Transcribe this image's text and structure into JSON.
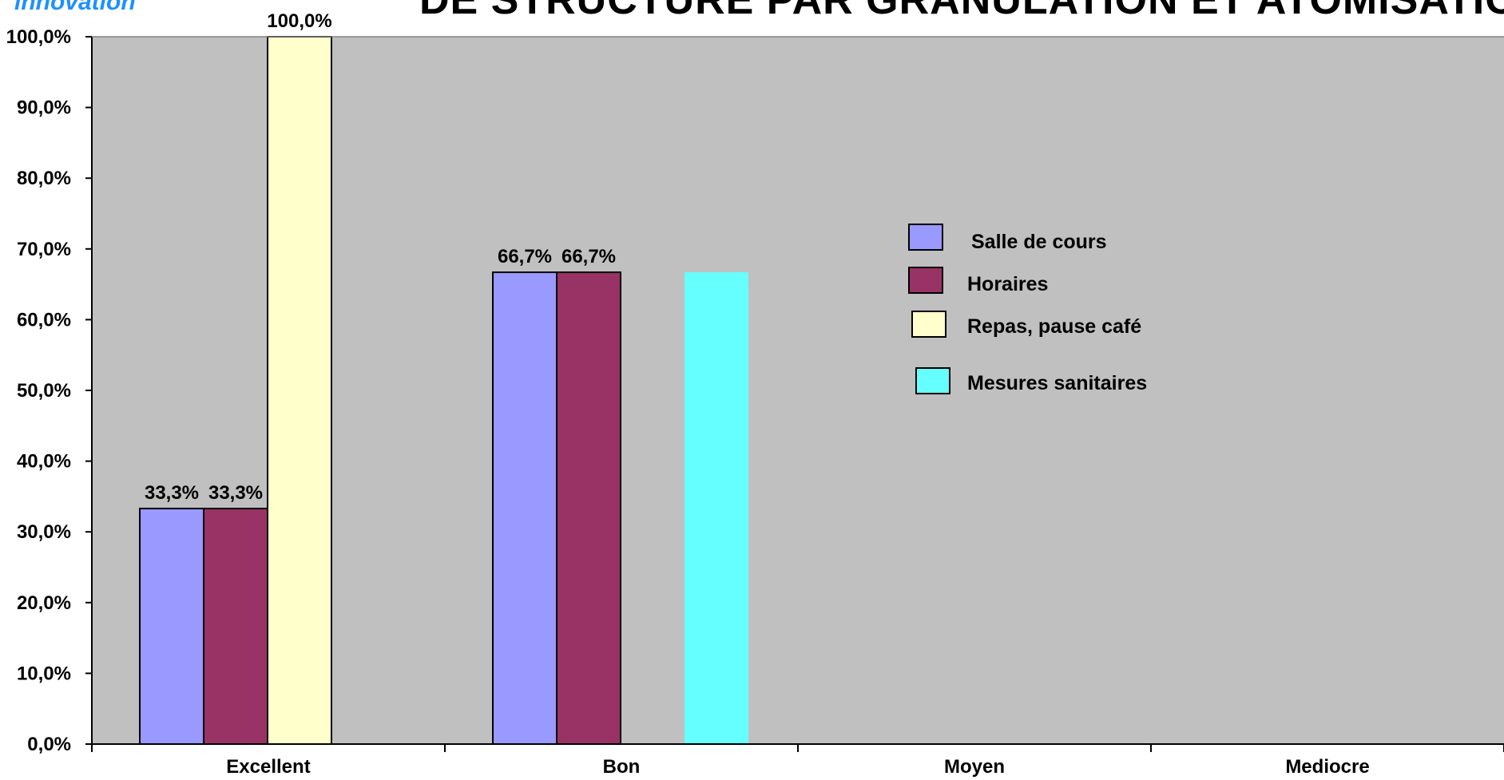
{
  "header": {
    "brand": "innovation",
    "title": "DE STRUCTURE PAR GRANULATION ET ATOMISATION"
  },
  "colors": {
    "plot_bg": "#c0c0c0",
    "Salle de cours": "#9999ff",
    "Horaires": "#993366",
    "Repas, pause café": "#ffffcc",
    "Mesures sanitaires": "#66ffff"
  },
  "chart_data": {
    "type": "bar",
    "categories": [
      "Excellent",
      "Bon",
      "Moyen",
      "Mediocre"
    ],
    "series": [
      {
        "name": "Salle de cours",
        "values": [
          33.3,
          66.7,
          0,
          0
        ],
        "labels": [
          "33,3%",
          "66,7%",
          "",
          ""
        ],
        "outlined": true
      },
      {
        "name": "Horaires",
        "values": [
          33.3,
          66.7,
          0,
          0
        ],
        "labels": [
          "33,3%",
          "66,7%",
          "",
          ""
        ],
        "outlined": true
      },
      {
        "name": "Repas, pause café",
        "values": [
          100,
          0,
          0,
          0
        ],
        "labels": [
          "100,0%",
          "",
          "",
          ""
        ],
        "outlined": true
      },
      {
        "name": "Mesures sanitaires",
        "values": [
          0,
          66.7,
          0,
          0
        ],
        "labels": [
          "",
          "",
          "",
          ""
        ],
        "outlined": false
      }
    ],
    "ylim": [
      0,
      100
    ],
    "yticks": [
      0,
      10,
      20,
      30,
      40,
      50,
      60,
      70,
      80,
      90,
      100
    ],
    "ytick_labels": [
      "0,0%",
      "10,0%",
      "20,0%",
      "30,0%",
      "40,0%",
      "50,0%",
      "60,0%",
      "70,0%",
      "80,0%",
      "90,0%",
      "100,0%"
    ],
    "grid": false,
    "legend_position": "right-center",
    "xlabel": "",
    "ylabel": ""
  }
}
